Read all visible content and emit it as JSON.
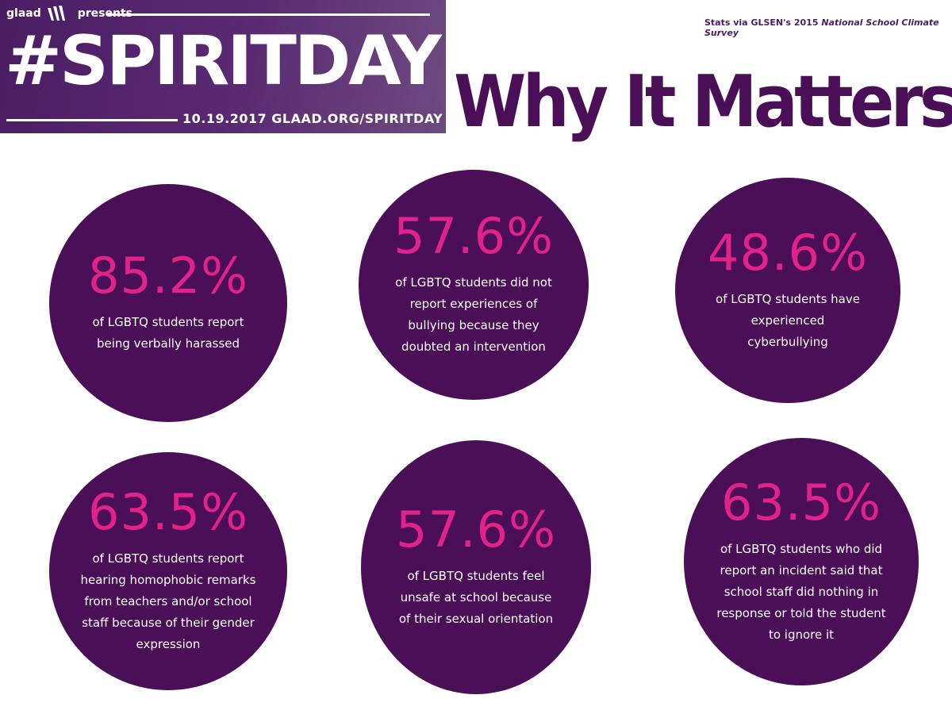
{
  "banner": {
    "brand": "glaad",
    "presents": "presents",
    "hashtag": "#SPIRITDAY",
    "event_line": "10.19.2017 GLAAD.ORG/SPIRITDAY"
  },
  "source": {
    "prefix": "Stats via GLSEN's 2015 ",
    "title": "National School Climate Survey"
  },
  "heading": "Why It Matters",
  "stats": [
    {
      "value": "85.2%",
      "text": "of LGBTQ students report being verbally harassed"
    },
    {
      "value": "57.6%",
      "text": "of LGBTQ students did not report experiences of bullying because they doubted an intervention"
    },
    {
      "value": "48.6%",
      "text": "of LGBTQ students have experienced cyberbullying"
    },
    {
      "value": "63.5%",
      "text": "of LGBTQ students report hearing homophobic remarks from teachers and/or school staff because of their gender expression"
    },
    {
      "value": "57.6%",
      "text": "of LGBTQ students feel unsafe at school because of their sexual orientation"
    },
    {
      "value": "63.5%",
      "text": "of LGBTQ students who did report an incident said that school staff did nothing in response or told the student to ignore it"
    }
  ],
  "colors": {
    "circle": "#4a0f57",
    "percent": "#e2228a",
    "heading": "#4a0f57",
    "banner": "#4a1d63"
  }
}
